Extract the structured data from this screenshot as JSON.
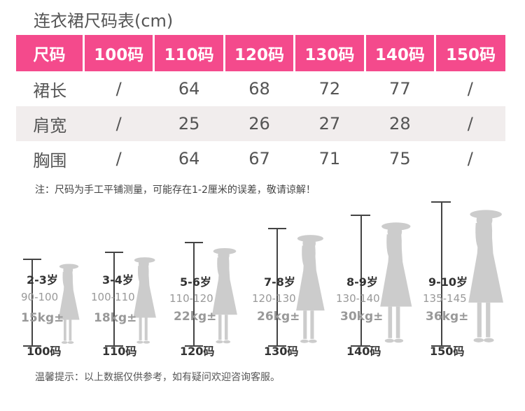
{
  "title": "连衣裙尺码表(cm)",
  "table": {
    "headers": [
      "尺码",
      "100码",
      "110码",
      "120码",
      "130码",
      "140码",
      "150码"
    ],
    "rows": [
      {
        "label": "裙长",
        "cells": [
          "/",
          "64",
          "68",
          "72",
          "77",
          "/"
        ]
      },
      {
        "label": "肩宽",
        "cells": [
          "/",
          "25",
          "26",
          "27",
          "28",
          "/"
        ]
      },
      {
        "label": "胸围",
        "cells": [
          "/",
          "64",
          "67",
          "71",
          "75",
          "/"
        ]
      }
    ]
  },
  "note": "注：尺码为手工平铺测量，可能存在1-2厘米的误差，敬请谅解！",
  "figures": [
    {
      "age": "2-3岁",
      "height": "90-100",
      "weight": "15kg±",
      "code": "100码"
    },
    {
      "age": "3-4岁",
      "height": "100-110",
      "weight": "18kg±",
      "code": "110码"
    },
    {
      "age": "5-6岁",
      "height": "110-120",
      "weight": "22kg±",
      "code": "120码"
    },
    {
      "age": "7-8岁",
      "height": "120-130",
      "weight": "26kg±",
      "code": "130码"
    },
    {
      "age": "8-9岁",
      "height": "130-140",
      "weight": "30kg±",
      "code": "140码"
    },
    {
      "age": "9-10岁",
      "height": "135-145",
      "weight": "36kg±",
      "code": "150码"
    }
  ],
  "tips": "温馨提示：以上数据仅供参考，如有疑问欢迎咨询客服。",
  "colors": {
    "header_bg": "#f44a8c",
    "shade_row": "#f1eded",
    "silhouette": "#cccccc"
  },
  "icons": {
    "silhouette": "girl-silhouette-icon"
  }
}
